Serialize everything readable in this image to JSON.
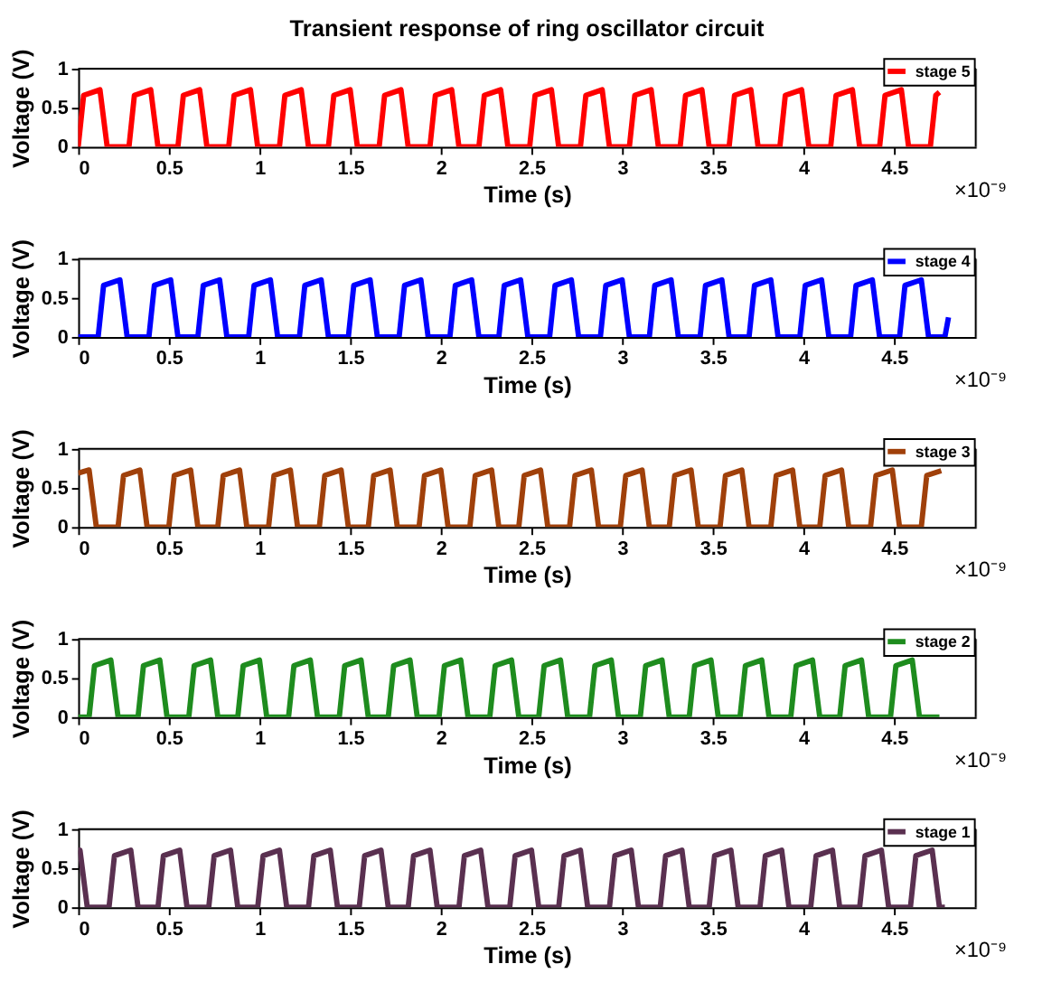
{
  "chart_data": [
    {
      "type": "line",
      "title": "Transient response of ring oscillator circuit",
      "xlabel": "Time (s)",
      "ylabel": "Voltage (V)",
      "xlim": [
        0,
        4.95
      ],
      "xticks": [
        0,
        0.5,
        1,
        1.5,
        2,
        2.5,
        3,
        3.5,
        4,
        4.5
      ],
      "ylim": [
        0,
        1
      ],
      "yticks": [
        0,
        0.5,
        1
      ],
      "legend": "top right",
      "grid": false,
      "line_style": "solid",
      "marker": "none",
      "annotations": [
        "×10⁻⁹"
      ],
      "series": [
        {
          "name": "stage 5",
          "color": "#ff0000",
          "x": [
            0,
            0.03,
            0.12,
            0.16,
            0.28,
            0.31,
            0.4,
            0.44,
            0.55,
            0.58,
            0.67,
            0.71,
            0.83,
            0.86,
            0.95,
            0.99,
            1.11,
            1.14,
            1.23,
            1.27,
            1.38,
            1.41,
            1.5,
            1.54,
            1.66,
            1.69,
            1.78,
            1.82,
            1.94,
            1.97,
            2.06,
            2.1,
            2.21,
            2.24,
            2.33,
            2.37,
            2.49,
            2.52,
            2.61,
            2.65,
            2.77,
            2.8,
            2.89,
            2.93,
            3.04,
            3.07,
            3.16,
            3.2,
            3.32,
            3.35,
            3.44,
            3.48,
            3.59,
            3.62,
            3.71,
            3.75,
            3.87,
            3.9,
            3.99,
            4.03,
            4.15,
            4.18,
            4.27,
            4.31,
            4.42,
            4.45,
            4.54,
            4.58,
            4.7,
            4.73,
            4.75
          ],
          "values": [
            0,
            0.66,
            0.73,
            0,
            0,
            0.66,
            0.73,
            0,
            0,
            0.66,
            0.73,
            0,
            0,
            0.66,
            0.73,
            0,
            0,
            0.66,
            0.73,
            0,
            0,
            0.66,
            0.73,
            0,
            0,
            0.66,
            0.73,
            0,
            0,
            0.66,
            0.73,
            0,
            0,
            0.66,
            0.73,
            0,
            0,
            0.66,
            0.73,
            0,
            0,
            0.66,
            0.73,
            0,
            0,
            0.66,
            0.73,
            0,
            0,
            0.66,
            0.73,
            0,
            0,
            0.66,
            0.73,
            0,
            0,
            0.66,
            0.73,
            0,
            0,
            0.66,
            0.73,
            0,
            0,
            0.66,
            0.73,
            0,
            0,
            0.66,
            0.7
          ]
        }
      ]
    },
    {
      "type": "line",
      "xlabel": "Time (s)",
      "ylabel": "Voltage (V)",
      "xlim": [
        0,
        4.95
      ],
      "xticks": [
        0,
        0.5,
        1,
        1.5,
        2,
        2.5,
        3,
        3.5,
        4,
        4.5
      ],
      "ylim": [
        0,
        1
      ],
      "yticks": [
        0,
        0.5,
        1
      ],
      "legend": "top right",
      "grid": false,
      "line_style": "solid",
      "marker": "none",
      "annotations": [
        "×10⁻⁹"
      ],
      "series": [
        {
          "name": "stage 4",
          "color": "#0000ff",
          "x": [
            0,
            0.11,
            0.14,
            0.23,
            0.27,
            0.39,
            0.42,
            0.51,
            0.55,
            0.66,
            0.69,
            0.78,
            0.82,
            0.94,
            0.97,
            1.06,
            1.1,
            1.22,
            1.25,
            1.34,
            1.38,
            1.49,
            1.52,
            1.61,
            1.65,
            1.77,
            1.8,
            1.89,
            1.93,
            2.05,
            2.08,
            2.17,
            2.21,
            2.32,
            2.35,
            2.44,
            2.48,
            2.6,
            2.63,
            2.72,
            2.76,
            2.88,
            2.91,
            3.0,
            3.04,
            3.15,
            3.18,
            3.27,
            3.31,
            3.43,
            3.46,
            3.55,
            3.59,
            3.7,
            3.73,
            3.82,
            3.86,
            3.98,
            4.01,
            4.1,
            4.14,
            4.26,
            4.29,
            4.38,
            4.42,
            4.53,
            4.56,
            4.65,
            4.69,
            4.78,
            4.8
          ],
          "values": [
            0,
            0,
            0.66,
            0.73,
            0,
            0,
            0.66,
            0.73,
            0,
            0,
            0.66,
            0.73,
            0,
            0,
            0.66,
            0.73,
            0,
            0,
            0.66,
            0.73,
            0,
            0,
            0.66,
            0.73,
            0,
            0,
            0.66,
            0.73,
            0,
            0,
            0.66,
            0.73,
            0,
            0,
            0.66,
            0.73,
            0,
            0,
            0.66,
            0.73,
            0,
            0,
            0.66,
            0.73,
            0,
            0,
            0.66,
            0.73,
            0,
            0,
            0.66,
            0.73,
            0,
            0,
            0.66,
            0.73,
            0,
            0,
            0.66,
            0.73,
            0,
            0,
            0.66,
            0.73,
            0,
            0,
            0.66,
            0.73,
            0,
            0,
            0.25
          ]
        }
      ]
    },
    {
      "type": "line",
      "xlabel": "Time (s)",
      "ylabel": "Voltage (V)",
      "xlim": [
        0,
        4.95
      ],
      "xticks": [
        0,
        0.5,
        1,
        1.5,
        2,
        2.5,
        3,
        3.5,
        4,
        4.5
      ],
      "ylim": [
        0,
        1
      ],
      "yticks": [
        0,
        0.5,
        1
      ],
      "legend": "top right",
      "grid": false,
      "line_style": "solid",
      "marker": "none",
      "annotations": [
        "×10⁻⁹"
      ],
      "series": [
        {
          "name": "stage 3",
          "color": "#a0400a",
          "x": [
            0,
            0.06,
            0.1,
            0.22,
            0.25,
            0.34,
            0.38,
            0.5,
            0.53,
            0.62,
            0.66,
            0.77,
            0.8,
            0.89,
            0.93,
            1.05,
            1.08,
            1.17,
            1.21,
            1.33,
            1.36,
            1.45,
            1.49,
            1.6,
            1.63,
            1.72,
            1.76,
            1.88,
            1.91,
            2.0,
            2.04,
            2.16,
            2.19,
            2.28,
            2.32,
            2.43,
            2.46,
            2.55,
            2.59,
            2.71,
            2.74,
            2.83,
            2.87,
            2.99,
            3.02,
            3.11,
            3.15,
            3.26,
            3.29,
            3.38,
            3.42,
            3.54,
            3.57,
            3.66,
            3.7,
            3.82,
            3.85,
            3.94,
            3.98,
            4.09,
            4.12,
            4.21,
            4.25,
            4.37,
            4.4,
            4.49,
            4.53,
            4.65,
            4.68,
            4.76
          ],
          "values": [
            0.69,
            0.73,
            0,
            0,
            0.66,
            0.73,
            0,
            0,
            0.66,
            0.73,
            0,
            0,
            0.66,
            0.73,
            0,
            0,
            0.66,
            0.73,
            0,
            0,
            0.66,
            0.73,
            0,
            0,
            0.66,
            0.73,
            0,
            0,
            0.66,
            0.73,
            0,
            0,
            0.66,
            0.73,
            0,
            0,
            0.66,
            0.73,
            0,
            0,
            0.66,
            0.73,
            0,
            0,
            0.66,
            0.73,
            0,
            0,
            0.66,
            0.73,
            0,
            0,
            0.66,
            0.73,
            0,
            0,
            0.66,
            0.73,
            0,
            0,
            0.66,
            0.73,
            0,
            0,
            0.66,
            0.73,
            0,
            0,
            0.66,
            0.72
          ]
        }
      ]
    },
    {
      "type": "line",
      "xlabel": "Time (s)",
      "ylabel": "Voltage (V)",
      "xlim": [
        0,
        4.95
      ],
      "xticks": [
        0,
        0.5,
        1,
        1.5,
        2,
        2.5,
        3,
        3.5,
        4,
        4.5
      ],
      "ylim": [
        0,
        1
      ],
      "yticks": [
        0,
        0.5,
        1
      ],
      "legend": "top right",
      "grid": false,
      "line_style": "solid",
      "marker": "none",
      "annotations": [
        "×10⁻⁹"
      ],
      "series": [
        {
          "name": "stage 2",
          "color": "#1e8c1e",
          "x": [
            0,
            0.06,
            0.09,
            0.18,
            0.22,
            0.33,
            0.36,
            0.45,
            0.49,
            0.61,
            0.64,
            0.73,
            0.77,
            0.88,
            0.91,
            1.0,
            1.04,
            1.16,
            1.19,
            1.28,
            1.32,
            1.44,
            1.47,
            1.56,
            1.6,
            1.71,
            1.74,
            1.83,
            1.87,
            1.99,
            2.02,
            2.11,
            2.15,
            2.27,
            2.3,
            2.39,
            2.43,
            2.54,
            2.57,
            2.66,
            2.7,
            2.82,
            2.85,
            2.94,
            2.98,
            3.1,
            3.13,
            3.22,
            3.26,
            3.37,
            3.4,
            3.49,
            3.53,
            3.65,
            3.68,
            3.77,
            3.81,
            3.93,
            3.96,
            4.05,
            4.09,
            4.2,
            4.23,
            4.32,
            4.36,
            4.48,
            4.51,
            4.6,
            4.64,
            4.75
          ],
          "values": [
            0,
            0,
            0.66,
            0.73,
            0,
            0,
            0.66,
            0.73,
            0,
            0,
            0.66,
            0.73,
            0,
            0,
            0.66,
            0.73,
            0,
            0,
            0.66,
            0.73,
            0,
            0,
            0.66,
            0.73,
            0,
            0,
            0.66,
            0.73,
            0,
            0,
            0.66,
            0.73,
            0,
            0,
            0.66,
            0.73,
            0,
            0,
            0.66,
            0.73,
            0,
            0,
            0.66,
            0.73,
            0,
            0,
            0.66,
            0.73,
            0,
            0,
            0.66,
            0.73,
            0,
            0,
            0.66,
            0.73,
            0,
            0,
            0.66,
            0.73,
            0,
            0,
            0.66,
            0.73,
            0,
            0,
            0.66,
            0.73,
            0,
            0
          ]
        }
      ]
    },
    {
      "type": "line",
      "xlabel": "Time (s)",
      "ylabel": "Voltage (V)",
      "xlim": [
        0,
        4.95
      ],
      "xticks": [
        0,
        0.5,
        1,
        1.5,
        2,
        2.5,
        3,
        3.5,
        4,
        4.5
      ],
      "ylim": [
        0,
        1
      ],
      "yticks": [
        0,
        0.5,
        1
      ],
      "legend": "top right",
      "grid": false,
      "line_style": "solid",
      "marker": "none",
      "annotations": [
        "×10⁻⁹"
      ],
      "series": [
        {
          "name": "stage 1",
          "color": "#5a3050",
          "x": [
            0,
            0.01,
            0.05,
            0.17,
            0.2,
            0.29,
            0.33,
            0.44,
            0.47,
            0.56,
            0.6,
            0.72,
            0.75,
            0.84,
            0.88,
            0.99,
            1.02,
            1.11,
            1.15,
            1.27,
            1.3,
            1.39,
            1.43,
            1.55,
            1.58,
            1.67,
            1.71,
            1.82,
            1.85,
            1.94,
            1.98,
            2.1,
            2.13,
            2.22,
            2.26,
            2.38,
            2.41,
            2.5,
            2.54,
            2.65,
            2.68,
            2.77,
            2.81,
            2.93,
            2.96,
            3.05,
            3.09,
            3.21,
            3.24,
            3.33,
            3.37,
            3.48,
            3.51,
            3.6,
            3.64,
            3.76,
            3.79,
            3.88,
            3.92,
            4.04,
            4.07,
            4.16,
            4.2,
            4.31,
            4.34,
            4.43,
            4.47,
            4.59,
            4.62,
            4.71,
            4.75,
            4.78
          ],
          "values": [
            0.73,
            0.73,
            0,
            0,
            0.66,
            0.73,
            0,
            0,
            0.66,
            0.73,
            0,
            0,
            0.66,
            0.73,
            0,
            0,
            0.66,
            0.73,
            0,
            0,
            0.66,
            0.73,
            0,
            0,
            0.66,
            0.73,
            0,
            0,
            0.66,
            0.73,
            0,
            0,
            0.66,
            0.73,
            0,
            0,
            0.66,
            0.73,
            0,
            0,
            0.66,
            0.73,
            0,
            0,
            0.66,
            0.73,
            0,
            0,
            0.66,
            0.73,
            0,
            0,
            0.66,
            0.73,
            0,
            0,
            0.66,
            0.73,
            0,
            0,
            0.66,
            0.73,
            0,
            0,
            0.66,
            0.73,
            0,
            0,
            0.66,
            0.73,
            0,
            0
          ]
        }
      ]
    }
  ]
}
